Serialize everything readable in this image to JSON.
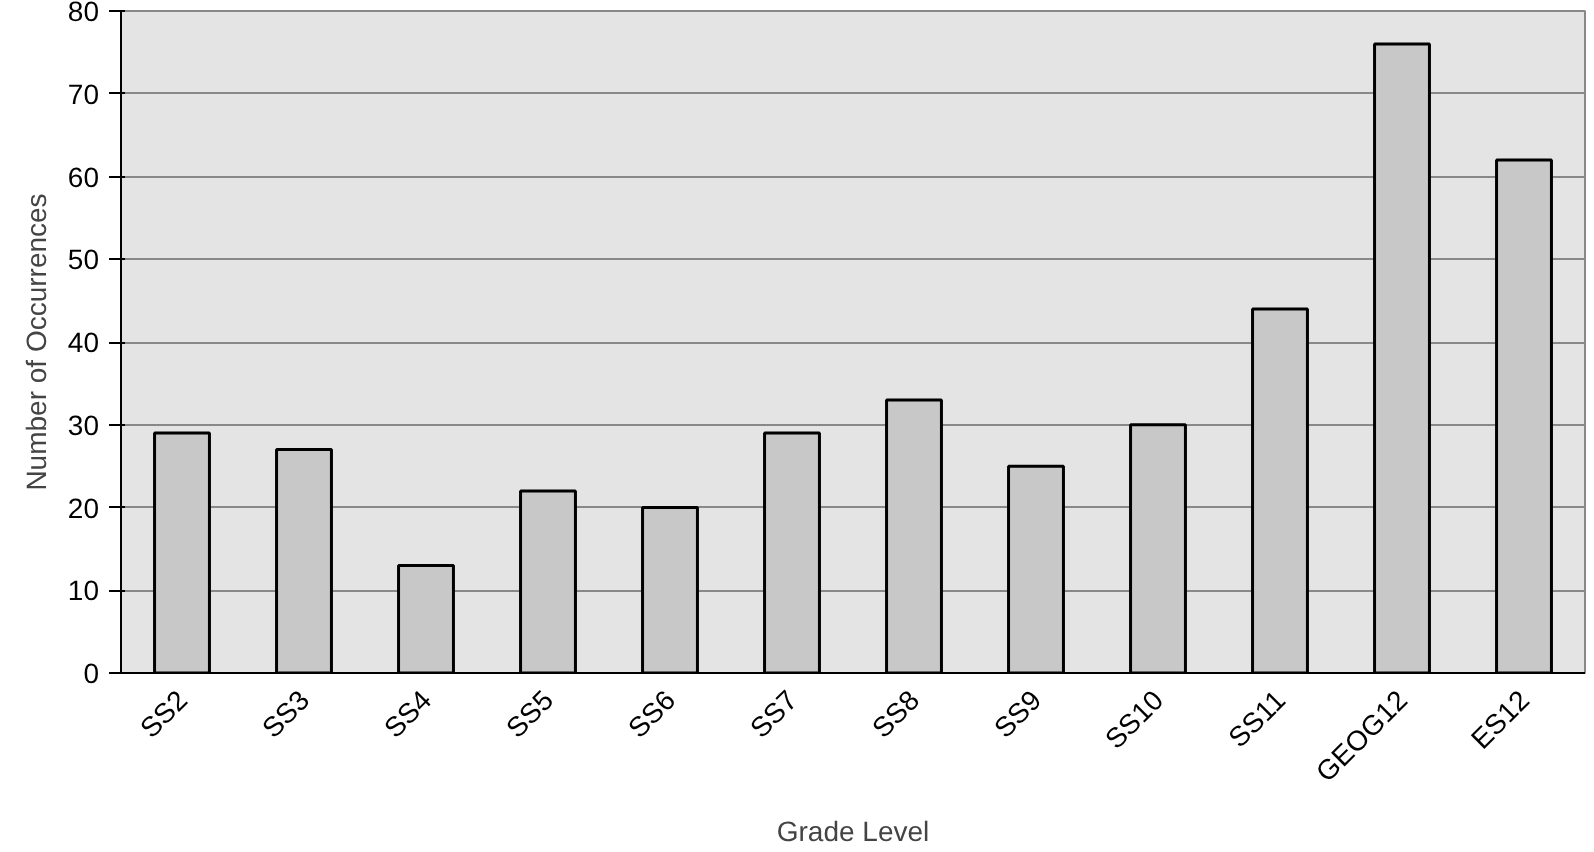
{
  "chart_data": {
    "type": "bar",
    "xlabel": "Grade Level",
    "ylabel": "Number of Occurrences",
    "categories": [
      "SS2",
      "SS3",
      "SS4",
      "SS5",
      "SS6",
      "SS7",
      "SS8",
      "SS9",
      "SS10",
      "SS11",
      "GEOG12",
      "ES12"
    ],
    "values": [
      29,
      27,
      13,
      22,
      20,
      29,
      33,
      25,
      30,
      44,
      76,
      62
    ],
    "color": "#c8c8c8",
    "ylim": [
      0,
      80
    ],
    "yticks": [
      0,
      10,
      20,
      30,
      40,
      50,
      60,
      70,
      80
    ],
    "grid": "y"
  }
}
